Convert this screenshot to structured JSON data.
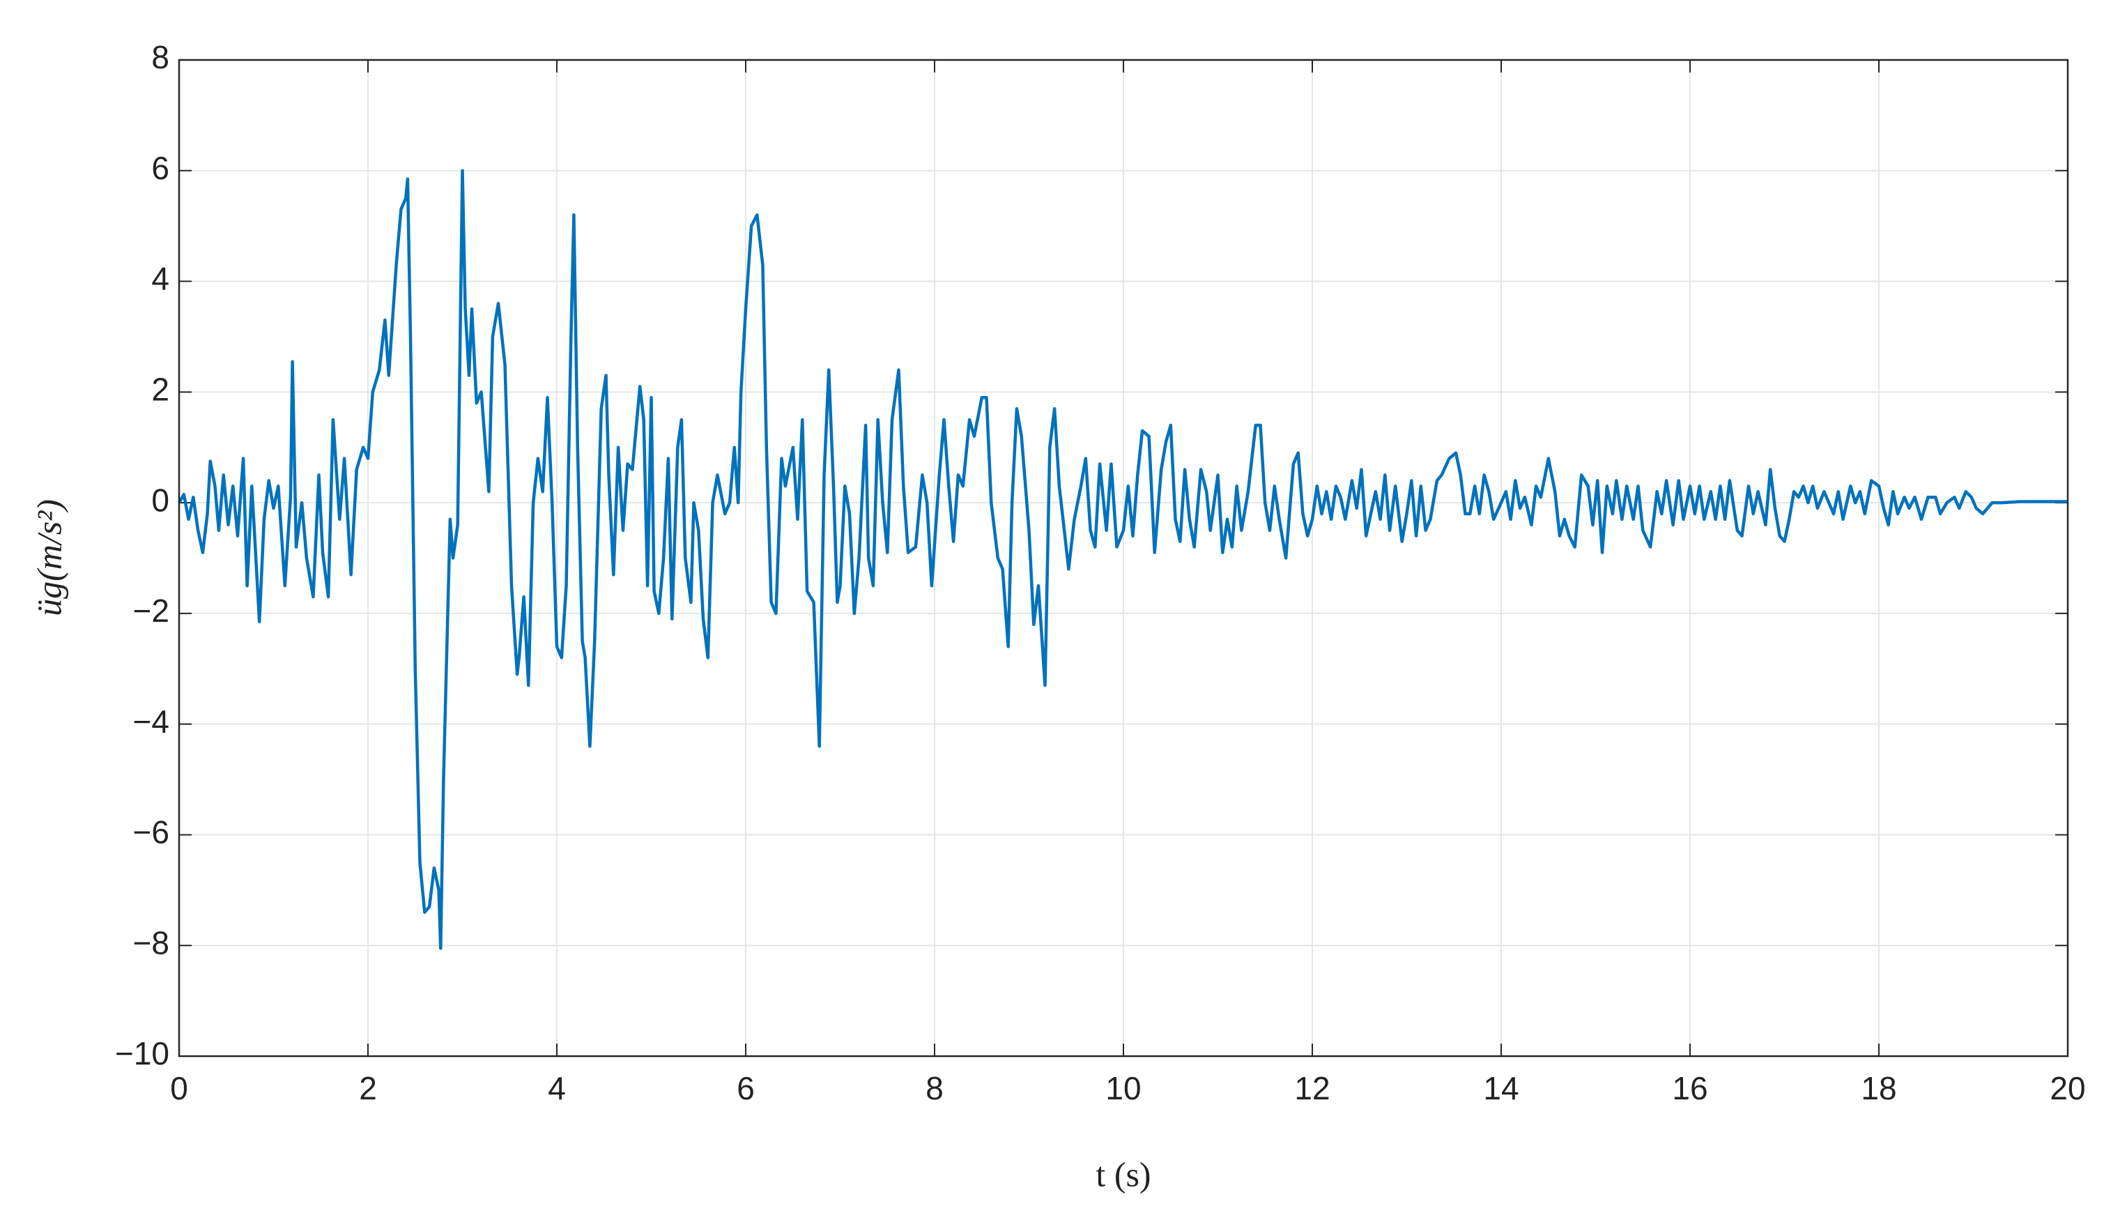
{
  "chart_data": {
    "type": "line",
    "xlabel": "t (s)",
    "ylabel": "üg(m/s²)",
    "xlim": [
      0,
      20
    ],
    "xticks": [
      0,
      2,
      4,
      6,
      8,
      10,
      12,
      14,
      16,
      18,
      20
    ],
    "ylim": [
      -10,
      8
    ],
    "yticks": [
      {
        "value": -10,
        "label": "−10"
      },
      {
        "value": -8,
        "label": "−8"
      },
      {
        "value": -6,
        "label": "−6"
      },
      {
        "value": -4,
        "label": "−4"
      },
      {
        "value": -2,
        "label": "−2"
      },
      0,
      2,
      4,
      6,
      8
    ],
    "grid": true,
    "x": [
      0,
      0.05,
      0.1,
      0.15,
      0.2,
      0.25,
      0.3,
      0.33,
      0.38,
      0.42,
      0.47,
      0.52,
      0.57,
      0.62,
      0.68,
      0.72,
      0.77,
      0.8,
      0.85,
      0.9,
      0.95,
      1.0,
      1.05,
      1.12,
      1.18,
      1.2,
      1.24,
      1.3,
      1.35,
      1.42,
      1.48,
      1.52,
      1.58,
      1.63,
      1.7,
      1.75,
      1.82,
      1.88,
      1.95,
      2.0,
      2.05,
      2.12,
      2.18,
      2.22,
      2.3,
      2.35,
      2.4,
      2.42,
      2.45,
      2.5,
      2.55,
      2.6,
      2.65,
      2.7,
      2.75,
      2.77,
      2.8,
      2.87,
      2.9,
      2.95,
      3.0,
      3.03,
      3.07,
      3.1,
      3.15,
      3.2,
      3.28,
      3.32,
      3.38,
      3.45,
      3.52,
      3.58,
      3.6,
      3.65,
      3.7,
      3.75,
      3.8,
      3.85,
      3.9,
      3.95,
      4.0,
      4.05,
      4.1,
      4.15,
      4.18,
      4.22,
      4.27,
      4.3,
      4.35,
      4.4,
      4.47,
      4.52,
      4.55,
      4.6,
      4.65,
      4.7,
      4.75,
      4.8,
      4.88,
      4.92,
      4.96,
      5.0,
      5.03,
      5.08,
      5.13,
      5.18,
      5.22,
      5.28,
      5.32,
      5.36,
      5.42,
      5.45,
      5.5,
      5.55,
      5.6,
      5.65,
      5.7,
      5.78,
      5.83,
      5.88,
      5.92,
      5.95,
      6.0,
      6.06,
      6.12,
      6.18,
      6.22,
      6.27,
      6.32,
      6.38,
      6.42,
      6.5,
      6.55,
      6.6,
      6.65,
      6.72,
      6.78,
      6.83,
      6.88,
      6.93,
      6.97,
      7.0,
      7.05,
      7.1,
      7.15,
      7.2,
      7.27,
      7.3,
      7.35,
      7.4,
      7.45,
      7.5,
      7.55,
      7.62,
      7.67,
      7.72,
      7.8,
      7.87,
      7.92,
      7.97,
      8.05,
      8.1,
      8.15,
      8.2,
      8.25,
      8.3,
      8.37,
      8.42,
      8.5,
      8.55,
      8.6,
      8.67,
      8.72,
      8.78,
      8.82,
      8.87,
      8.92,
      9.0,
      9.05,
      9.1,
      9.17,
      9.22,
      9.27,
      9.32,
      9.38,
      9.42,
      9.48,
      9.55,
      9.6,
      9.65,
      9.7,
      9.75,
      9.82,
      9.87,
      9.93,
      10.0,
      10.05,
      10.1,
      10.15,
      10.2,
      10.27,
      10.33,
      10.4,
      10.45,
      10.5,
      10.55,
      10.6,
      10.65,
      10.7,
      10.75,
      10.82,
      10.88,
      10.92,
      11.0,
      11.05,
      11.1,
      11.15,
      11.2,
      11.25,
      11.32,
      11.4,
      11.45,
      11.5,
      11.55,
      11.6,
      11.65,
      11.72,
      11.8,
      11.85,
      11.9,
      11.95,
      12.0,
      12.05,
      12.1,
      12.15,
      12.2,
      12.25,
      12.3,
      12.35,
      12.42,
      12.47,
      12.52,
      12.57,
      12.62,
      12.67,
      12.72,
      12.77,
      12.82,
      12.88,
      12.95,
      13.0,
      13.05,
      13.1,
      13.15,
      13.2,
      13.25,
      13.32,
      13.37,
      13.45,
      13.52,
      13.57,
      13.62,
      13.67,
      13.72,
      13.77,
      13.82,
      13.87,
      13.92,
      14.0,
      14.05,
      14.1,
      14.15,
      14.2,
      14.25,
      14.32,
      14.37,
      14.42,
      14.5,
      14.57,
      14.62,
      14.67,
      14.72,
      14.78,
      14.85,
      14.92,
      14.97,
      15.02,
      15.07,
      15.12,
      15.18,
      15.22,
      15.28,
      15.33,
      15.4,
      15.45,
      15.5,
      15.58,
      15.65,
      15.7,
      15.75,
      15.82,
      15.88,
      15.93,
      16.0,
      16.05,
      16.1,
      16.15,
      16.22,
      16.27,
      16.32,
      16.37,
      16.42,
      16.5,
      16.55,
      16.62,
      16.67,
      16.72,
      16.8,
      16.85,
      16.9,
      16.95,
      17.0,
      17.05,
      17.1,
      17.15,
      17.2,
      17.25,
      17.3,
      17.35,
      17.42,
      17.47,
      17.52,
      17.57,
      17.62,
      17.7,
      17.75,
      17.8,
      17.85,
      17.92,
      18.0,
      18.05,
      18.1,
      18.15,
      18.2,
      18.27,
      18.32,
      18.38,
      18.45,
      18.52,
      18.6,
      18.65,
      18.72,
      18.8,
      18.85,
      18.92,
      18.98,
      19.03,
      19.1,
      19.2,
      19.3,
      19.5,
      20
    ],
    "series": [
      {
        "color": "#0072bd",
        "values": [
          0,
          0.15,
          -0.3,
          0.1,
          -0.5,
          -0.9,
          -0.2,
          0.75,
          0.3,
          -0.5,
          0.5,
          -0.4,
          0.3,
          -0.6,
          0.8,
          -1.5,
          0.3,
          -0.6,
          -2.15,
          -0.3,
          0.4,
          -0.1,
          0.3,
          -1.5,
          0.1,
          2.55,
          -0.8,
          0,
          -1.0,
          -1.7,
          0.5,
          -0.9,
          -1.7,
          1.5,
          -0.3,
          0.8,
          -1.3,
          0.6,
          1.0,
          0.8,
          2.0,
          2.4,
          3.3,
          2.3,
          4.3,
          5.3,
          5.5,
          5.85,
          3.0,
          -3,
          -6.5,
          -7.4,
          -7.3,
          -6.6,
          -7,
          -8.05,
          -5,
          -0.3,
          -1,
          -0.4,
          6.0,
          3.5,
          2.3,
          3.5,
          1.8,
          2.0,
          0.2,
          3.0,
          3.6,
          2.5,
          -1.5,
          -3.1,
          -2.8,
          -1.7,
          -3.3,
          0,
          0.8,
          0.2,
          1.9,
          0,
          -2.6,
          -2.8,
          -1.5,
          3,
          5.2,
          1,
          -2.5,
          -2.8,
          -4.4,
          -2.5,
          1.7,
          2.3,
          0.5,
          -1.3,
          1.0,
          -0.5,
          0.7,
          0.6,
          2.1,
          1.5,
          -1.5,
          1.9,
          -1.6,
          -2.0,
          -1.0,
          0.8,
          -2.1,
          1.0,
          1.5,
          -1.0,
          -1.8,
          0,
          -0.5,
          -2.1,
          -2.8,
          0,
          0.5,
          -0.2,
          0,
          1.0,
          0,
          2.0,
          3.5,
          5.0,
          5.2,
          4.3,
          1,
          -1.8,
          -2.0,
          0.8,
          0.3,
          1.0,
          -0.3,
          1.5,
          -1.6,
          -1.8,
          -4.4,
          0.5,
          2.4,
          0.3,
          -1.8,
          -1.5,
          0.3,
          -0.2,
          -2.0,
          -1.0,
          1.4,
          -1.0,
          -1.5,
          1.5,
          0,
          -0.9,
          1.5,
          2.4,
          0.3,
          -0.9,
          -0.8,
          0.5,
          0,
          -1.5,
          0.5,
          1.5,
          0.3,
          -0.7,
          0.5,
          0.3,
          1.5,
          1.2,
          1.9,
          1.9,
          0,
          -1.0,
          -1.2,
          -2.6,
          0,
          1.7,
          1.2,
          -0.5,
          -2.2,
          -1.5,
          -3.3,
          1.0,
          1.7,
          0.3,
          -0.6,
          -1.2,
          -0.3,
          0.3,
          0.8,
          -0.5,
          -0.8,
          0.7,
          -0.5,
          0.7,
          -0.8,
          -0.5,
          0.3,
          -0.6,
          0.5,
          1.3,
          1.2,
          -0.9,
          0.6,
          1.1,
          1.4,
          -0.3,
          -0.7,
          0.6,
          -0.3,
          -0.8,
          0.6,
          0.2,
          -0.5,
          0.5,
          -0.9,
          -0.3,
          -0.8,
          0.3,
          -0.5,
          0.2,
          1.4,
          1.4,
          0,
          -0.5,
          0.3,
          -0.3,
          -1.0,
          0.7,
          0.9,
          -0.2,
          -0.6,
          -0.3,
          0.3,
          -0.2,
          0.2,
          -0.3,
          0.3,
          0.1,
          -0.3,
          0.4,
          -0.1,
          0.6,
          -0.6,
          -0.2,
          0.2,
          -0.3,
          0.5,
          -0.5,
          0.3,
          -0.7,
          -0.2,
          0.4,
          -0.6,
          0.3,
          -0.5,
          -0.3,
          0.4,
          0.5,
          0.8,
          0.9,
          0.5,
          -0.2,
          -0.2,
          0.3,
          -0.2,
          0.5,
          0.2,
          -0.3,
          0,
          0.2,
          -0.3,
          0.4,
          -0.1,
          0.1,
          -0.4,
          0.3,
          0.1,
          0.8,
          0.2,
          -0.6,
          -0.3,
          -0.6,
          -0.8,
          0.5,
          0.3,
          -0.4,
          0.4,
          -0.9,
          0.3,
          -0.2,
          0.4,
          -0.3,
          0.3,
          -0.3,
          0.3,
          -0.5,
          -0.8,
          0.2,
          -0.2,
          0.4,
          -0.4,
          0.4,
          -0.3,
          0.3,
          -0.2,
          0.3,
          -0.3,
          0.2,
          -0.3,
          0.3,
          -0.3,
          0.4,
          -0.5,
          -0.6,
          0.3,
          -0.2,
          0.2,
          -0.4,
          0.6,
          -0.1,
          -0.6,
          -0.7,
          -0.3,
          0.2,
          0.1,
          0.3,
          0,
          0.3,
          -0.1,
          0.2,
          0,
          -0.2,
          0.2,
          -0.3,
          0.3,
          0,
          0.2,
          -0.2,
          0.4,
          0.3,
          -0.1,
          -0.4,
          0.2,
          -0.2,
          0.1,
          -0.1,
          0.1,
          -0.3,
          0.1,
          0.1,
          -0.2,
          0,
          0.1,
          -0.1,
          0.2,
          0.1,
          -0.1,
          -0.2,
          0.0,
          0,
          0.02,
          0.02
        ]
      }
    ]
  }
}
